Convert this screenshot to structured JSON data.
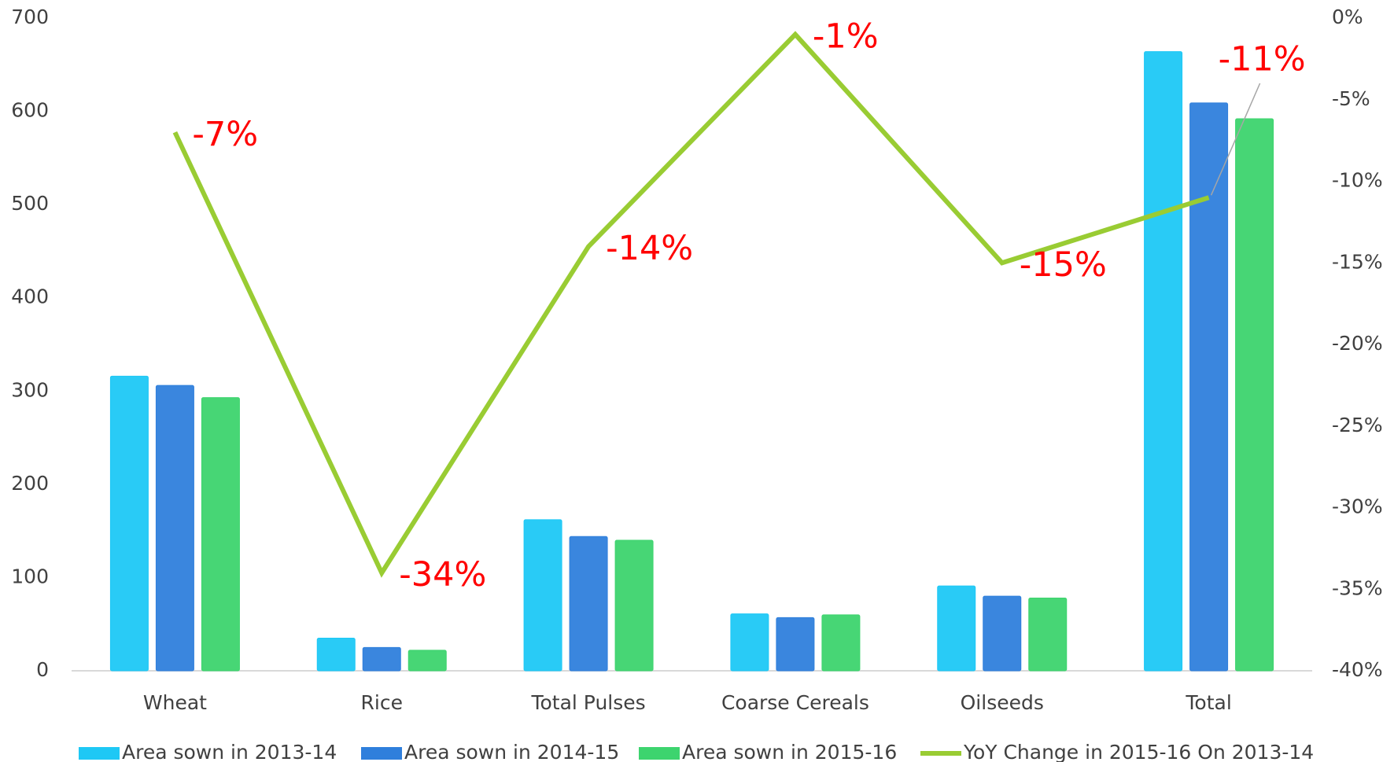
{
  "chart_data": {
    "type": "bar",
    "categories": [
      "Wheat",
      "Rice",
      "Total Pulses",
      "Coarse Cereals",
      "Oilseeds",
      "Total"
    ],
    "series": [
      {
        "name": "Area sown in 2013-14",
        "color": "#1ec8f5",
        "values": [
          316,
          35,
          162,
          61,
          91,
          664
        ]
      },
      {
        "name": "Area sown in 2014-15",
        "color": "#2f7fdc",
        "values": [
          306,
          25,
          144,
          57,
          80,
          609
        ]
      },
      {
        "name": "Area sown in 2015-16",
        "color": "#3dd46e",
        "values": [
          293,
          22,
          140,
          60,
          78,
          592
        ]
      },
      {
        "name": "YoY Change in 2015-16 On 2013-14",
        "color": "#99cc33",
        "type": "line",
        "axis": "y2",
        "values": [
          -7,
          -34,
          -14,
          -1,
          -15,
          -11
        ],
        "value_labels": [
          "-7%",
          "-34%",
          "-14%",
          "-1%",
          "-15%",
          "-11%"
        ]
      }
    ],
    "ylim": [
      0,
      700
    ],
    "yticks": [
      0,
      100,
      200,
      300,
      400,
      500,
      600,
      700
    ],
    "y2lim": [
      -40,
      0
    ],
    "y2ticks": [
      {
        "value": 0,
        "label": "0%"
      },
      {
        "value": -5,
        "label": "-5%"
      },
      {
        "value": -10,
        "label": "-10%"
      },
      {
        "value": -15,
        "label": "-15%"
      },
      {
        "value": -20,
        "label": "-20%"
      },
      {
        "value": -25,
        "label": "-25%"
      },
      {
        "value": -30,
        "label": "-30%"
      },
      {
        "value": -35,
        "label": "-35%"
      },
      {
        "value": -40,
        "label": "-40%"
      }
    ],
    "legend": "bottom"
  }
}
